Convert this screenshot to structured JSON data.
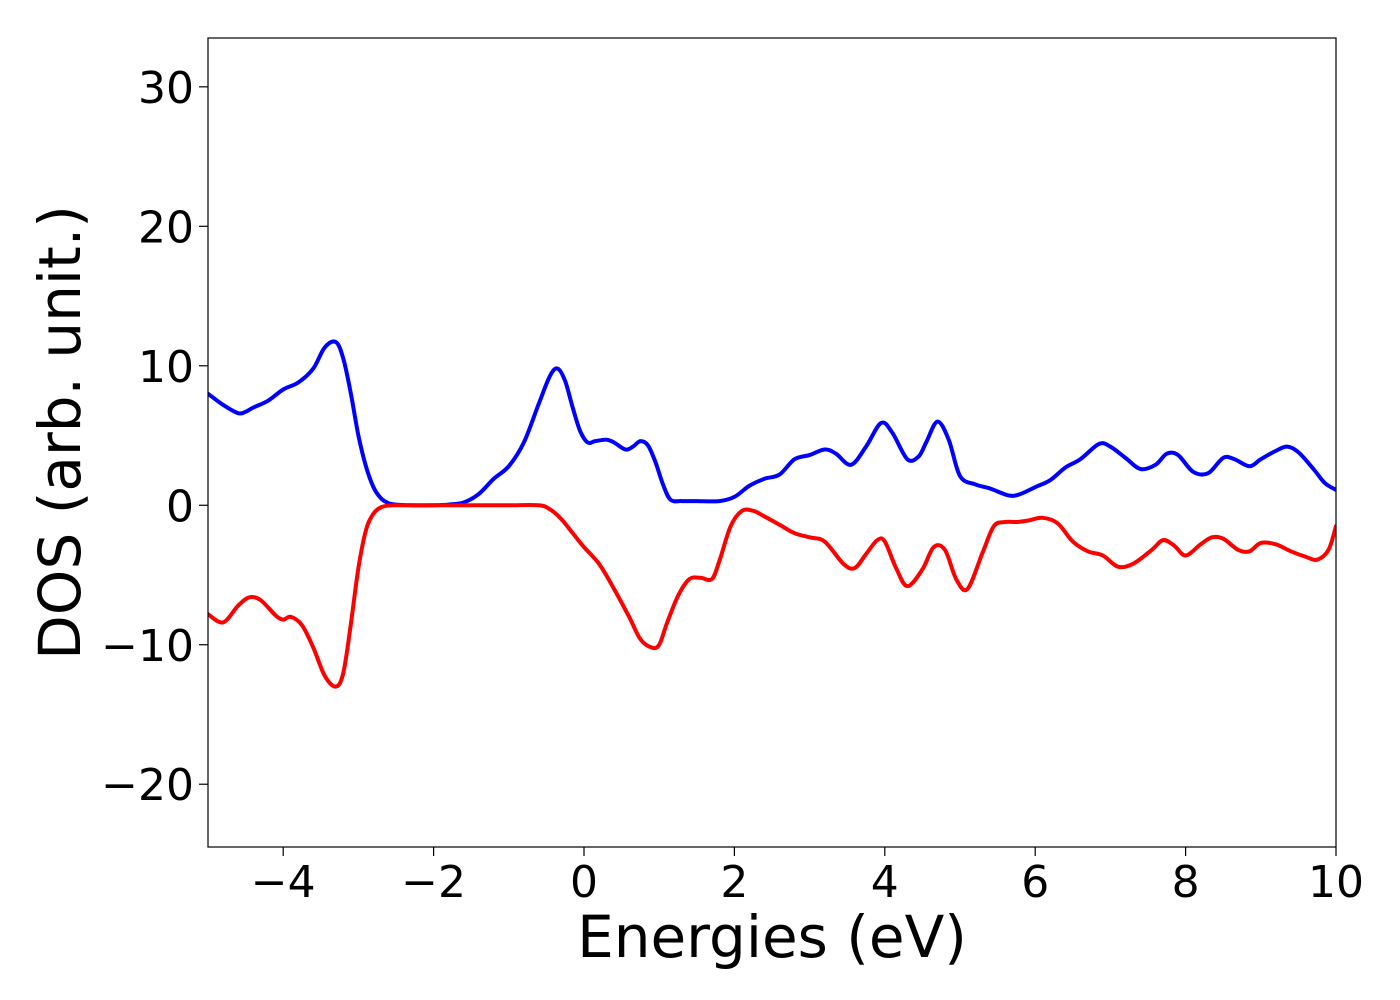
{
  "chart_data": {
    "type": "line",
    "title": "",
    "xlabel": "Energies (eV)",
    "ylabel": "DOS (arb. unit.)",
    "xlim": [
      -5,
      10
    ],
    "ylim": [
      -24.5,
      33.5
    ],
    "xticks": [
      -4,
      -2,
      0,
      2,
      4,
      6,
      8,
      10
    ],
    "xtick_labels": [
      "−4",
      "−2",
      "0",
      "2",
      "4",
      "6",
      "8",
      "10"
    ],
    "yticks": [
      -20,
      -10,
      0,
      10,
      20,
      30
    ],
    "ytick_labels": [
      "−20",
      "−10",
      "0",
      "10",
      "20",
      "30"
    ],
    "grid": false,
    "series": [
      {
        "color": "#0000ff",
        "x": [
          -5.0,
          -4.8,
          -4.6,
          -4.5,
          -4.4,
          -4.2,
          -4.0,
          -3.8,
          -3.6,
          -3.45,
          -3.3,
          -3.2,
          -3.1,
          -3.0,
          -2.9,
          -2.8,
          -2.7,
          -2.6,
          -2.5,
          -2.3,
          -2.0,
          -1.8,
          -1.6,
          -1.4,
          -1.2,
          -1.0,
          -0.8,
          -0.6,
          -0.45,
          -0.35,
          -0.25,
          -0.15,
          -0.05,
          0.05,
          0.15,
          0.3,
          0.4,
          0.55,
          0.65,
          0.75,
          0.85,
          0.95,
          1.05,
          1.15,
          1.3,
          1.5,
          1.8,
          2.0,
          2.2,
          2.4,
          2.6,
          2.8,
          3.0,
          3.2,
          3.35,
          3.55,
          3.75,
          3.95,
          4.1,
          4.3,
          4.45,
          4.55,
          4.7,
          4.85,
          5.0,
          5.2,
          5.4,
          5.65,
          5.8,
          6.0,
          6.2,
          6.4,
          6.6,
          6.85,
          7.0,
          7.2,
          7.4,
          7.6,
          7.75,
          7.9,
          8.1,
          8.3,
          8.5,
          8.65,
          8.85,
          9.0,
          9.2,
          9.35,
          9.5,
          9.7,
          9.85,
          10.0
        ],
        "y": [
          8.0,
          7.2,
          6.6,
          6.7,
          7.0,
          7.5,
          8.3,
          8.8,
          9.8,
          11.3,
          11.7,
          10.5,
          8.0,
          5.0,
          2.8,
          1.3,
          0.5,
          0.15,
          0.05,
          0.0,
          0.0,
          0.05,
          0.2,
          0.8,
          1.9,
          2.8,
          4.5,
          7.3,
          9.3,
          9.8,
          8.9,
          7.0,
          5.3,
          4.5,
          4.6,
          4.7,
          4.5,
          4.0,
          4.2,
          4.6,
          4.3,
          3.1,
          1.5,
          0.4,
          0.3,
          0.3,
          0.3,
          0.6,
          1.4,
          1.9,
          2.2,
          3.3,
          3.6,
          4.0,
          3.7,
          2.9,
          4.2,
          5.9,
          5.2,
          3.3,
          3.5,
          4.5,
          6.0,
          4.7,
          2.1,
          1.5,
          1.2,
          0.7,
          0.8,
          1.3,
          1.8,
          2.7,
          3.3,
          4.4,
          4.2,
          3.4,
          2.6,
          2.9,
          3.7,
          3.6,
          2.4,
          2.3,
          3.4,
          3.3,
          2.8,
          3.3,
          3.9,
          4.2,
          3.8,
          2.6,
          1.6,
          1.1
        ]
      },
      {
        "color": "#ff0000",
        "x": [
          -5.0,
          -4.8,
          -4.6,
          -4.45,
          -4.3,
          -4.1,
          -4.0,
          -3.9,
          -3.75,
          -3.6,
          -3.45,
          -3.3,
          -3.2,
          -3.1,
          -3.0,
          -2.9,
          -2.8,
          -2.7,
          -2.6,
          -2.5,
          -2.3,
          -2.0,
          -1.5,
          -1.0,
          -0.6,
          -0.45,
          -0.3,
          -0.15,
          0.0,
          0.2,
          0.4,
          0.6,
          0.75,
          0.9,
          1.0,
          1.1,
          1.25,
          1.4,
          1.55,
          1.7,
          1.8,
          1.95,
          2.1,
          2.25,
          2.4,
          2.6,
          2.8,
          3.0,
          3.2,
          3.45,
          3.6,
          3.75,
          3.9,
          4.0,
          4.15,
          4.3,
          4.5,
          4.65,
          4.8,
          4.95,
          5.1,
          5.3,
          5.45,
          5.6,
          5.75,
          5.9,
          6.1,
          6.3,
          6.5,
          6.7,
          6.9,
          7.1,
          7.3,
          7.55,
          7.7,
          7.85,
          8.0,
          8.2,
          8.35,
          8.5,
          8.7,
          8.85,
          9.0,
          9.2,
          9.4,
          9.6,
          9.75,
          9.9,
          10.0
        ],
        "y": [
          -7.8,
          -8.4,
          -7.2,
          -6.6,
          -6.8,
          -7.9,
          -8.2,
          -8.0,
          -8.6,
          -10.2,
          -12.2,
          -13.0,
          -12.0,
          -8.5,
          -4.5,
          -1.8,
          -0.6,
          -0.15,
          -0.02,
          0.0,
          0.0,
          0.0,
          0.0,
          0.0,
          0.0,
          -0.3,
          -1.0,
          -2.0,
          -3.0,
          -4.2,
          -6.0,
          -8.0,
          -9.6,
          -10.2,
          -10.0,
          -8.5,
          -6.5,
          -5.3,
          -5.2,
          -5.3,
          -4.0,
          -1.5,
          -0.4,
          -0.4,
          -0.8,
          -1.4,
          -2.0,
          -2.3,
          -2.6,
          -4.2,
          -4.5,
          -3.5,
          -2.5,
          -2.6,
          -4.5,
          -5.8,
          -4.6,
          -3.0,
          -3.2,
          -5.3,
          -6.0,
          -3.4,
          -1.5,
          -1.2,
          -1.2,
          -1.1,
          -0.9,
          -1.3,
          -2.6,
          -3.3,
          -3.6,
          -4.4,
          -4.2,
          -3.2,
          -2.5,
          -2.9,
          -3.6,
          -2.8,
          -2.3,
          -2.4,
          -3.2,
          -3.3,
          -2.7,
          -2.8,
          -3.3,
          -3.7,
          -3.9,
          -3.2,
          -1.5
        ]
      }
    ]
  }
}
